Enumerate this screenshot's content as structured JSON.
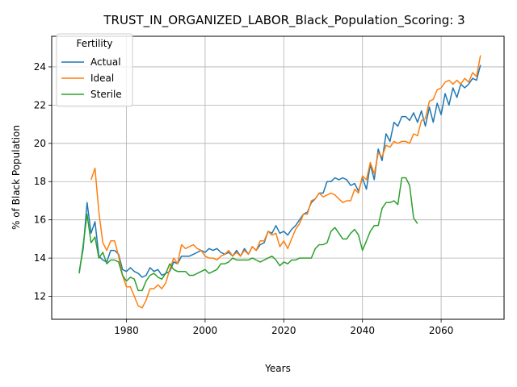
{
  "chart_data": {
    "type": "line",
    "title": "TRUST_IN_ORGANIZED_LABOR_Black_Population_Scoring: 3",
    "xlabel": "Years",
    "ylabel": "% of Black Population",
    "xlim": [
      1961,
      2076
    ],
    "ylim": [
      10.8,
      25.6
    ],
    "x_ticks": [
      1980,
      2000,
      2020,
      2040,
      2060
    ],
    "y_ticks": [
      12,
      14,
      16,
      18,
      20,
      22,
      24
    ],
    "grid": true,
    "legend": {
      "title": "Fertility",
      "placement": "top-left"
    },
    "series": [
      {
        "name": "Actual",
        "color": "#1f77b4",
        "x": [
          1968,
          1969,
          1970,
          1971,
          1972,
          1973,
          1974,
          1975,
          1976,
          1977,
          1978,
          1979,
          1980,
          1981,
          1982,
          1983,
          1984,
          1985,
          1986,
          1987,
          1988,
          1989,
          1990,
          1991,
          1992,
          1993,
          1994,
          1995,
          1996,
          1997,
          1998,
          1999,
          2000,
          2001,
          2002,
          2003,
          2004,
          2005,
          2006,
          2007,
          2008,
          2009,
          2010,
          2011,
          2012,
          2013,
          2014,
          2015,
          2016,
          2017,
          2018,
          2019,
          2020,
          2021,
          2022,
          2023,
          2024,
          2025,
          2026,
          2027,
          2028,
          2029,
          2030,
          2031,
          2032,
          2033,
          2034,
          2035,
          2036,
          2037,
          2038,
          2039,
          2040,
          2041,
          2042,
          2043,
          2044,
          2045,
          2046,
          2047,
          2048,
          2049,
          2050,
          2051,
          2052,
          2053,
          2054,
          2055,
          2056,
          2057,
          2058,
          2059,
          2060,
          2061,
          2062,
          2063,
          2064,
          2065,
          2066,
          2067,
          2068,
          2069,
          2070
        ],
        "y": [
          13.3,
          14.5,
          16.9,
          15.3,
          15.9,
          14.1,
          13.9,
          13.8,
          14.4,
          14.4,
          14.2,
          13.4,
          13.3,
          13.5,
          13.3,
          13.2,
          13.0,
          13.1,
          13.5,
          13.3,
          13.4,
          13.1,
          13.2,
          13.3,
          13.8,
          13.7,
          14.1,
          14.1,
          14.1,
          14.2,
          14.3,
          14.4,
          14.3,
          14.5,
          14.4,
          14.5,
          14.3,
          14.2,
          14.3,
          14.1,
          14.4,
          14.1,
          14.5,
          14.2,
          14.6,
          14.4,
          14.7,
          14.8,
          15.4,
          15.3,
          15.7,
          15.3,
          15.4,
          15.2,
          15.5,
          15.7,
          16.0,
          16.3,
          16.4,
          16.9,
          17.1,
          17.4,
          17.4,
          18.0,
          18.0,
          18.2,
          18.1,
          18.2,
          18.1,
          17.8,
          17.9,
          17.5,
          18.2,
          17.6,
          18.9,
          18.1,
          19.7,
          19.1,
          20.5,
          20.1,
          21.1,
          20.9,
          21.4,
          21.4,
          21.2,
          21.6,
          21.1,
          21.7,
          20.9,
          21.9,
          21.1,
          22.1,
          21.5,
          22.6,
          22.0,
          22.9,
          22.4,
          23.1,
          22.9,
          23.1,
          23.4,
          23.3,
          24.1
        ]
      },
      {
        "name": "Ideal",
        "color": "#ff7f0e",
        "x": [
          1971,
          1972,
          1973,
          1974,
          1975,
          1976,
          1977,
          1978,
          1979,
          1980,
          1981,
          1982,
          1983,
          1984,
          1985,
          1986,
          1987,
          1988,
          1989,
          1990,
          1991,
          1992,
          1993,
          1994,
          1995,
          1996,
          1997,
          1998,
          1999,
          2000,
          2001,
          2002,
          2003,
          2004,
          2005,
          2006,
          2007,
          2008,
          2009,
          2010,
          2011,
          2012,
          2013,
          2014,
          2015,
          2016,
          2017,
          2018,
          2019,
          2020,
          2021,
          2022,
          2023,
          2024,
          2025,
          2026,
          2027,
          2028,
          2029,
          2030,
          2031,
          2032,
          2033,
          2034,
          2035,
          2036,
          2037,
          2038,
          2039,
          2040,
          2041,
          2042,
          2043,
          2044,
          2045,
          2046,
          2047,
          2048,
          2049,
          2050,
          2051,
          2052,
          2053,
          2054,
          2055,
          2056,
          2057,
          2058,
          2059,
          2060,
          2061,
          2062,
          2063,
          2064,
          2065,
          2066,
          2067,
          2068,
          2069,
          2070
        ],
        "y": [
          18.1,
          18.7,
          16.4,
          14.8,
          14.4,
          14.9,
          14.9,
          14.1,
          13.1,
          12.5,
          12.5,
          12.0,
          11.5,
          11.4,
          11.8,
          12.4,
          12.4,
          12.6,
          12.4,
          12.7,
          13.4,
          14.0,
          13.7,
          14.7,
          14.5,
          14.6,
          14.7,
          14.5,
          14.4,
          14.1,
          14.0,
          14.0,
          13.9,
          14.1,
          14.2,
          14.4,
          14.1,
          14.3,
          14.1,
          14.4,
          14.2,
          14.6,
          14.4,
          14.9,
          14.9,
          15.4,
          15.2,
          15.3,
          14.6,
          14.9,
          14.5,
          15.0,
          15.5,
          15.8,
          16.3,
          16.3,
          17.0,
          17.1,
          17.4,
          17.2,
          17.3,
          17.4,
          17.3,
          17.1,
          16.9,
          17.0,
          17.0,
          17.6,
          17.4,
          18.3,
          18.1,
          19.0,
          18.4,
          19.5,
          19.3,
          19.9,
          19.8,
          20.1,
          20.0,
          20.1,
          20.1,
          20.0,
          20.5,
          20.4,
          21.2,
          21.3,
          22.2,
          22.3,
          22.8,
          22.9,
          23.2,
          23.3,
          23.1,
          23.3,
          23.1,
          23.4,
          23.2,
          23.7,
          23.5,
          24.6
        ]
      },
      {
        "name": "Sterile",
        "color": "#2ca02c",
        "x": [
          1968,
          1969,
          1970,
          1971,
          1972,
          1973,
          1974,
          1975,
          1976,
          1977,
          1978,
          1979,
          1980,
          1981,
          1982,
          1983,
          1984,
          1985,
          1986,
          1987,
          1988,
          1989,
          1990,
          1991,
          1992,
          1993,
          1994,
          1995,
          1996,
          1997,
          1998,
          1999,
          2000,
          2001,
          2002,
          2003,
          2004,
          2005,
          2006,
          2007,
          2008,
          2009,
          2010,
          2011,
          2012,
          2013,
          2014,
          2015,
          2016,
          2017,
          2018,
          2019,
          2020,
          2021,
          2022,
          2023,
          2024,
          2025,
          2026,
          2027,
          2028,
          2029,
          2030,
          2031,
          2032,
          2033,
          2034,
          2035,
          2036,
          2037,
          2038,
          2039,
          2040,
          2041,
          2042,
          2043,
          2044,
          2045,
          2046,
          2047,
          2048,
          2049,
          2050,
          2051,
          2052,
          2053,
          2054
        ],
        "y": [
          13.2,
          14.7,
          16.3,
          14.8,
          15.1,
          14.0,
          14.3,
          13.7,
          13.9,
          13.9,
          13.8,
          13.1,
          12.8,
          13.0,
          12.9,
          12.3,
          12.3,
          12.8,
          13.1,
          13.2,
          13.0,
          12.9,
          13.2,
          13.7,
          13.4,
          13.3,
          13.3,
          13.3,
          13.1,
          13.1,
          13.2,
          13.3,
          13.4,
          13.2,
          13.3,
          13.4,
          13.7,
          13.7,
          13.8,
          14.0,
          13.9,
          13.9,
          13.9,
          13.9,
          14.0,
          13.9,
          13.8,
          13.9,
          14.0,
          14.1,
          13.9,
          13.6,
          13.8,
          13.7,
          13.9,
          13.9,
          14.0,
          14.0,
          14.0,
          14.0,
          14.5,
          14.7,
          14.7,
          14.8,
          15.4,
          15.6,
          15.3,
          15.0,
          15.0,
          15.3,
          15.5,
          15.2,
          14.4,
          14.9,
          15.4,
          15.7,
          15.7,
          16.6,
          16.9,
          16.9,
          17.0,
          16.8,
          18.2,
          18.2,
          17.8,
          16.1,
          15.8
        ]
      }
    ]
  }
}
